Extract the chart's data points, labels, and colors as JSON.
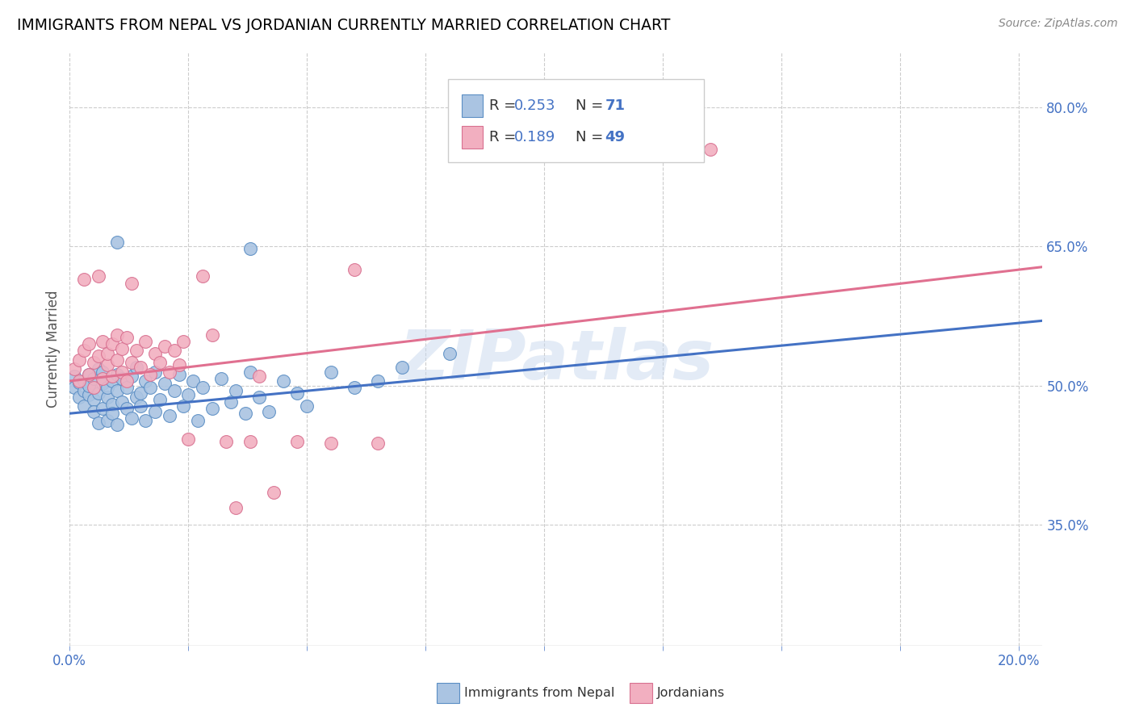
{
  "title": "IMMIGRANTS FROM NEPAL VS JORDANIAN CURRENTLY MARRIED CORRELATION CHART",
  "source": "Source: ZipAtlas.com",
  "ylabel": "Currently Married",
  "xlim": [
    0.0,
    0.205
  ],
  "ylim": [
    0.22,
    0.86
  ],
  "x_ticks": [
    0.0,
    0.025,
    0.05,
    0.075,
    0.1,
    0.125,
    0.15,
    0.175,
    0.2
  ],
  "y_ticks_right": [
    0.8,
    0.65,
    0.5,
    0.35
  ],
  "y_tick_labels_right": [
    "80.0%",
    "65.0%",
    "50.0%",
    "35.0%"
  ],
  "nepal_color": "#aac4e2",
  "jordan_color": "#f2afc0",
  "nepal_edge_color": "#5b8ec4",
  "jordan_edge_color": "#d87090",
  "nepal_line_color": "#4472c4",
  "jordan_line_color": "#e07090",
  "R_nepal": "0.253",
  "N_nepal": "71",
  "R_jordan": "0.189",
  "N_jordan": "49",
  "legend_label_nepal": "Immigrants from Nepal",
  "legend_label_jordan": "Jordanians",
  "watermark": "ZIPatlas",
  "nepal_trend_x": [
    0.0,
    0.205
  ],
  "nepal_trend_y": [
    0.47,
    0.57
  ],
  "jordan_trend_x": [
    0.0,
    0.205
  ],
  "jordan_trend_y": [
    0.505,
    0.628
  ],
  "nepal_scatter": [
    [
      0.001,
      0.51
    ],
    [
      0.001,
      0.498
    ],
    [
      0.002,
      0.503
    ],
    [
      0.002,
      0.488
    ],
    [
      0.003,
      0.495
    ],
    [
      0.003,
      0.505
    ],
    [
      0.003,
      0.478
    ],
    [
      0.004,
      0.512
    ],
    [
      0.004,
      0.49
    ],
    [
      0.004,
      0.5
    ],
    [
      0.005,
      0.485
    ],
    [
      0.005,
      0.508
    ],
    [
      0.005,
      0.472
    ],
    [
      0.006,
      0.518
    ],
    [
      0.006,
      0.492
    ],
    [
      0.006,
      0.46
    ],
    [
      0.007,
      0.502
    ],
    [
      0.007,
      0.475
    ],
    [
      0.007,
      0.515
    ],
    [
      0.008,
      0.488
    ],
    [
      0.008,
      0.462
    ],
    [
      0.008,
      0.498
    ],
    [
      0.009,
      0.505
    ],
    [
      0.009,
      0.48
    ],
    [
      0.009,
      0.47
    ],
    [
      0.01,
      0.495
    ],
    [
      0.01,
      0.512
    ],
    [
      0.01,
      0.458
    ],
    [
      0.011,
      0.482
    ],
    [
      0.011,
      0.508
    ],
    [
      0.012,
      0.475
    ],
    [
      0.012,
      0.498
    ],
    [
      0.013,
      0.465
    ],
    [
      0.013,
      0.51
    ],
    [
      0.014,
      0.488
    ],
    [
      0.014,
      0.52
    ],
    [
      0.015,
      0.478
    ],
    [
      0.015,
      0.492
    ],
    [
      0.016,
      0.505
    ],
    [
      0.016,
      0.462
    ],
    [
      0.017,
      0.498
    ],
    [
      0.018,
      0.472
    ],
    [
      0.018,
      0.515
    ],
    [
      0.019,
      0.485
    ],
    [
      0.02,
      0.502
    ],
    [
      0.021,
      0.468
    ],
    [
      0.022,
      0.495
    ],
    [
      0.023,
      0.512
    ],
    [
      0.024,
      0.478
    ],
    [
      0.025,
      0.49
    ],
    [
      0.026,
      0.505
    ],
    [
      0.027,
      0.462
    ],
    [
      0.028,
      0.498
    ],
    [
      0.03,
      0.475
    ],
    [
      0.032,
      0.508
    ],
    [
      0.034,
      0.482
    ],
    [
      0.035,
      0.495
    ],
    [
      0.037,
      0.47
    ],
    [
      0.038,
      0.515
    ],
    [
      0.04,
      0.488
    ],
    [
      0.042,
      0.472
    ],
    [
      0.045,
      0.505
    ],
    [
      0.048,
      0.492
    ],
    [
      0.05,
      0.478
    ],
    [
      0.055,
      0.515
    ],
    [
      0.06,
      0.498
    ],
    [
      0.065,
      0.505
    ],
    [
      0.07,
      0.52
    ],
    [
      0.08,
      0.535
    ],
    [
      0.01,
      0.655
    ],
    [
      0.038,
      0.648
    ]
  ],
  "jordan_scatter": [
    [
      0.001,
      0.518
    ],
    [
      0.002,
      0.528
    ],
    [
      0.002,
      0.505
    ],
    [
      0.003,
      0.615
    ],
    [
      0.003,
      0.538
    ],
    [
      0.004,
      0.512
    ],
    [
      0.004,
      0.545
    ],
    [
      0.005,
      0.525
    ],
    [
      0.005,
      0.498
    ],
    [
      0.006,
      0.532
    ],
    [
      0.006,
      0.618
    ],
    [
      0.007,
      0.508
    ],
    [
      0.007,
      0.548
    ],
    [
      0.008,
      0.522
    ],
    [
      0.008,
      0.535
    ],
    [
      0.009,
      0.51
    ],
    [
      0.009,
      0.545
    ],
    [
      0.01,
      0.528
    ],
    [
      0.01,
      0.555
    ],
    [
      0.011,
      0.515
    ],
    [
      0.011,
      0.54
    ],
    [
      0.012,
      0.505
    ],
    [
      0.012,
      0.552
    ],
    [
      0.013,
      0.525
    ],
    [
      0.013,
      0.61
    ],
    [
      0.014,
      0.538
    ],
    [
      0.015,
      0.52
    ],
    [
      0.016,
      0.548
    ],
    [
      0.017,
      0.512
    ],
    [
      0.018,
      0.535
    ],
    [
      0.019,
      0.525
    ],
    [
      0.02,
      0.542
    ],
    [
      0.021,
      0.515
    ],
    [
      0.022,
      0.538
    ],
    [
      0.023,
      0.522
    ],
    [
      0.024,
      0.548
    ],
    [
      0.025,
      0.442
    ],
    [
      0.028,
      0.618
    ],
    [
      0.03,
      0.555
    ],
    [
      0.033,
      0.44
    ],
    [
      0.035,
      0.368
    ],
    [
      0.038,
      0.44
    ],
    [
      0.04,
      0.51
    ],
    [
      0.043,
      0.385
    ],
    [
      0.048,
      0.44
    ],
    [
      0.055,
      0.438
    ],
    [
      0.06,
      0.625
    ],
    [
      0.065,
      0.438
    ],
    [
      0.135,
      0.755
    ]
  ]
}
